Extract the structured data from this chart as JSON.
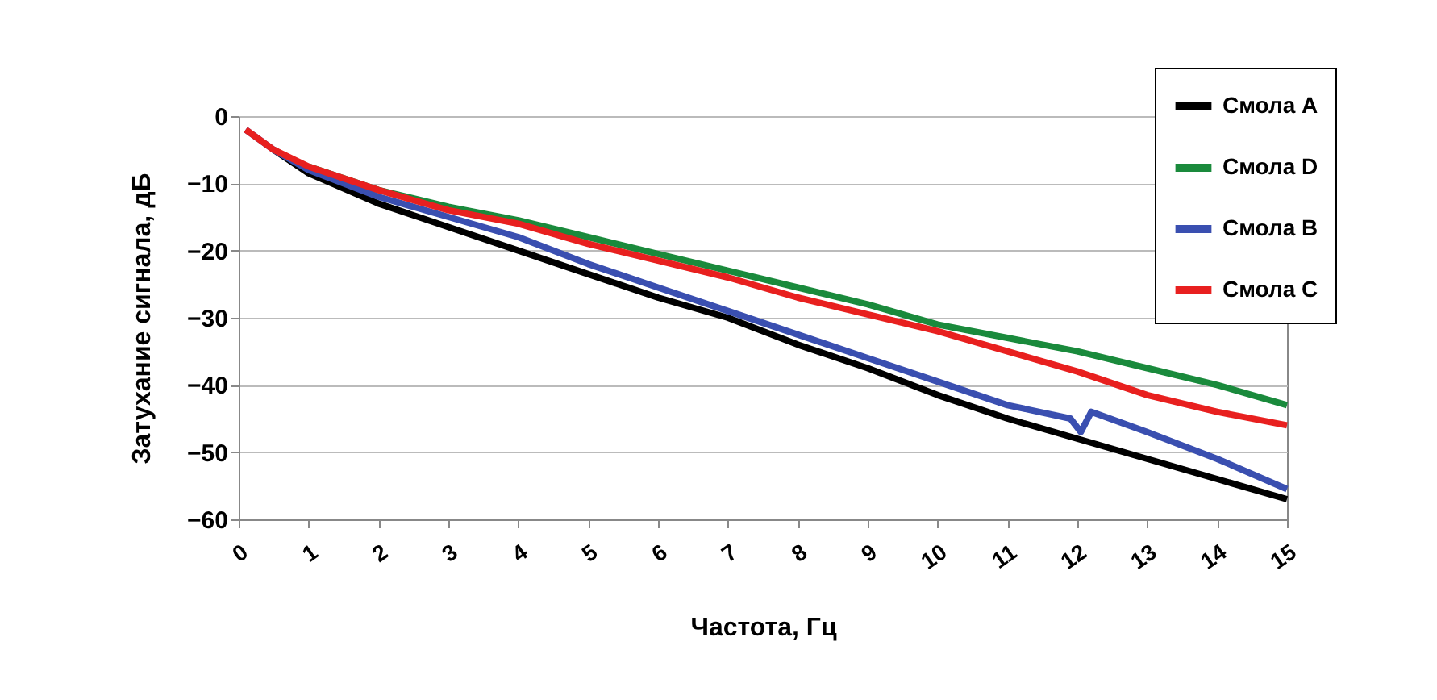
{
  "chart_data": {
    "type": "line",
    "xlabel": "Частота, Гц",
    "ylabel": "Затухание сигнала, дБ",
    "xlim": [
      0,
      15
    ],
    "ylim": [
      -60,
      0
    ],
    "xticks": [
      0,
      1,
      2,
      3,
      4,
      5,
      6,
      7,
      8,
      9,
      10,
      11,
      12,
      13,
      14,
      15
    ],
    "yticks": [
      -60,
      -50,
      -40,
      -30,
      -20,
      -10,
      0
    ],
    "grid": "y",
    "legend": "top right",
    "line_style": "solid",
    "marker": "none",
    "x": [
      0.1,
      0.5,
      1,
      2,
      3,
      4,
      5,
      6,
      7,
      8,
      9,
      10,
      11,
      12,
      13,
      14,
      15
    ],
    "series": [
      {
        "name": "Смола A",
        "color": "#000000",
        "values": [
          null,
          -5,
          -8.5,
          -13,
          -16.5,
          -20,
          -23.5,
          -27,
          -30,
          -34,
          -37.5,
          -41.5,
          -45,
          -48,
          -51,
          -54,
          -57
        ]
      },
      {
        "name": "Смола D",
        "color": "#1a8a3c",
        "values": [
          null,
          null,
          -7.5,
          -11,
          -13.5,
          -15.5,
          -18,
          -20.5,
          -23,
          -25.5,
          -28,
          -31,
          -33,
          -35,
          -37.5,
          -40,
          -43
        ]
      },
      {
        "name": "Смола B",
        "color": "#3a4fb0",
        "x": [
          0.1,
          0.5,
          1,
          2,
          3,
          4,
          5,
          6,
          7,
          8,
          9,
          10,
          11,
          11.9,
          12.05,
          12.2,
          13,
          14,
          15
        ],
        "values": [
          -2,
          -5,
          -8,
          -12,
          -15,
          -18,
          -22,
          -25.5,
          -29,
          -32.5,
          -36,
          -39.5,
          -43,
          -45,
          -47,
          -44,
          -47,
          -51,
          -55.5
        ]
      },
      {
        "name": "Смола C",
        "color": "#e8201f",
        "values": [
          -2,
          -5,
          -7.5,
          -11,
          -14,
          -16,
          -19,
          -21.5,
          -24,
          -27,
          -29.5,
          -32,
          -35,
          -38,
          -41.5,
          -44,
          -46
        ]
      }
    ]
  }
}
